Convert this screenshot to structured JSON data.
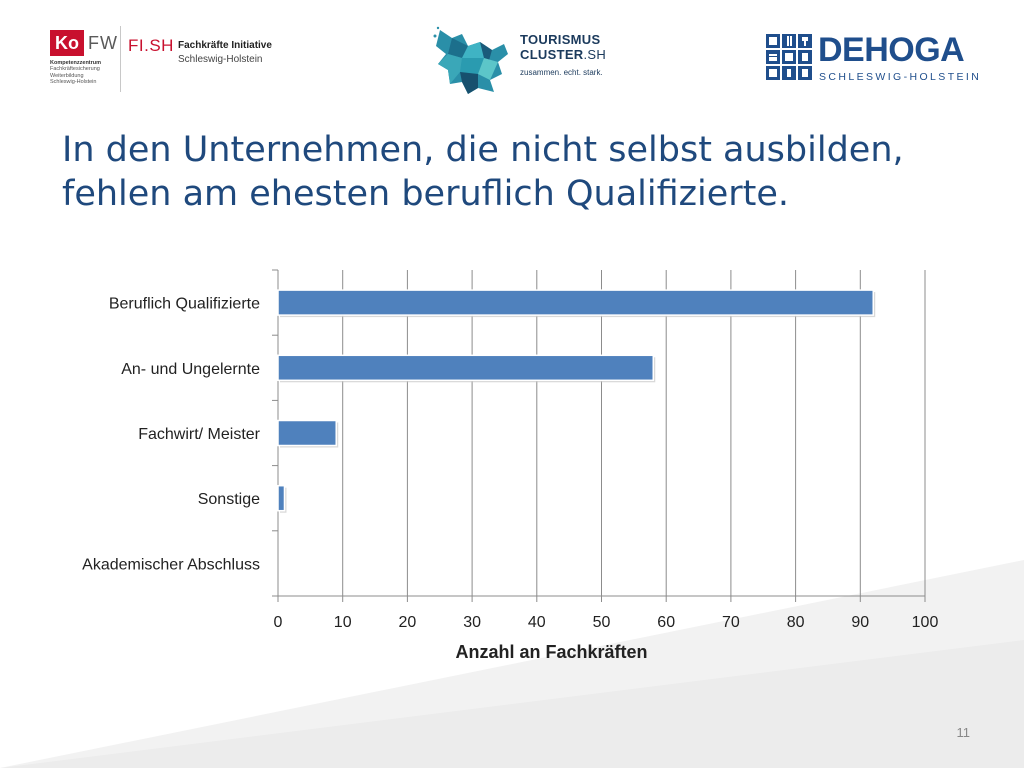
{
  "header": {
    "kofw": {
      "ko": "Ko",
      "fw": "FW",
      "subtitle_bold": "Kompetenzzentrum",
      "subtitle_lines": [
        "Fachkräftesicherung",
        "Weiterbildung",
        "Schleswig-Holstein"
      ]
    },
    "fish": {
      "name": "FI.SH",
      "title": "Fachkräfte Initiative",
      "region": "Schleswig-Holstein"
    },
    "tourismus": {
      "line1": "TOURISMUS",
      "line2_main": "CLUSTER",
      "line2_suffix": ".SH",
      "slogan": "zusammen. echt. stark."
    },
    "dehoga": {
      "name": "DEHOGA",
      "region": "SCHLESWIG-HOLSTEIN"
    }
  },
  "slide": {
    "title": "In den Unternehmen, die nicht selbst ausbilden, fehlen am ehesten beruflich Qualifizierte.",
    "page_number": "11"
  },
  "colors": {
    "title": "#1f497d",
    "bar": "#4f81bd",
    "grid": "#8c8c8c",
    "background_shape": "#f2f2f2"
  },
  "chart_data": {
    "type": "bar",
    "orientation": "horizontal",
    "categories": [
      "Beruflich Qualifizierte",
      "An- und Ungelernte",
      "Fachwirt/ Meister",
      "Sonstige",
      "Akademischer Abschluss"
    ],
    "values": [
      92,
      58,
      9,
      1,
      0
    ],
    "xlabel": "Anzahl an Fachkräften",
    "ylabel": "",
    "xlim": [
      0,
      100
    ],
    "x_ticks": [
      "0",
      "10",
      "20",
      "30",
      "40",
      "50",
      "60",
      "70",
      "80",
      "90",
      "100"
    ],
    "grid": true,
    "legend": "none"
  }
}
